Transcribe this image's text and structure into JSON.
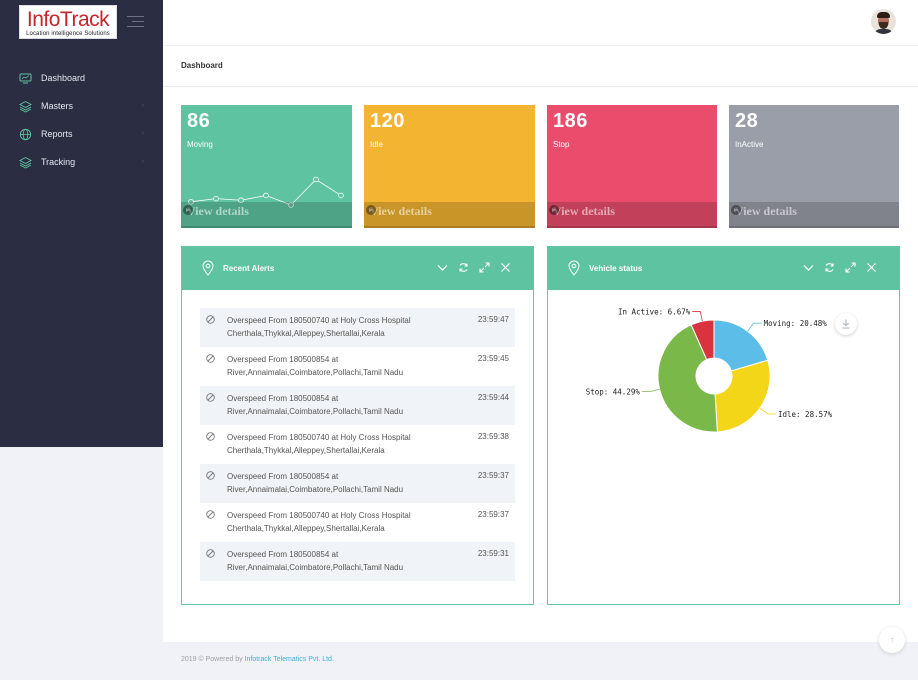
{
  "brand": {
    "name": "InfoTrack",
    "tagline": "Location intelligence Solutions"
  },
  "sidebar": {
    "items": [
      {
        "label": "Dashboard",
        "icon": "monitor-icon"
      },
      {
        "label": "Masters",
        "icon": "layers-icon"
      },
      {
        "label": "Reports",
        "icon": "globe-icon"
      },
      {
        "label": "Tracking",
        "icon": "layers-icon"
      }
    ],
    "caret": "›"
  },
  "breadcrumb": "Dashboard",
  "stats": [
    {
      "value": "86",
      "label": "Moving",
      "color": "#5ec3a0",
      "footer": "View details"
    },
    {
      "value": "120",
      "label": "Idle",
      "color": "#f3b431",
      "footer": "View details"
    },
    {
      "value": "186",
      "label": "Stop",
      "color": "#ea4d6b",
      "footer": "View details"
    },
    {
      "value": "28",
      "label": "InActive",
      "color": "#9a9ea8",
      "footer": "View details"
    }
  ],
  "sparkline_values": [
    3,
    4,
    3.5,
    5,
    2,
    10,
    5
  ],
  "alerts_panel": {
    "title": "Recent Alerts",
    "rows": [
      {
        "text": "Overspeed From 180500740 at Holy Cross Hospital Cherthala,Thykkal,Alleppey,Shertallai,Kerala",
        "time": "23:59:47"
      },
      {
        "text": "Overspeed From 180500854 at River,Annaimalai,Coimbatore,Pollachi,Tamil Nadu",
        "time": "23:59:45"
      },
      {
        "text": "Overspeed From 180500854 at River,Annaimalai,Coimbatore,Pollachi,Tamil Nadu",
        "time": "23:59:44"
      },
      {
        "text": "Overspeed From 180500740 at Holy Cross Hospital Cherthala,Thykkal,Alleppey,Shertallai,Kerala",
        "time": "23:59:38"
      },
      {
        "text": "Overspeed From 180500854 at River,Annaimalai,Coimbatore,Pollachi,Tamil Nadu",
        "time": "23:59:37"
      },
      {
        "text": "Overspeed From 180500740 at Holy Cross Hospital Cherthala,Thykkal,Alleppey,Shertallai,Kerala",
        "time": "23:59:37"
      },
      {
        "text": "Overspeed From 180500854 at River,Annaimalai,Coimbatore,Pollachi,Tamil Nadu",
        "time": "23:59:31"
      }
    ]
  },
  "vehicle_panel": {
    "title": "Vehicle status"
  },
  "chart_data": {
    "type": "pie",
    "series": [
      {
        "name": "Moving",
        "value": 20.48,
        "label": "Moving: 20.48%",
        "color": "#5bbde8"
      },
      {
        "name": "Idle",
        "value": 28.57,
        "label": "Idle: 28.57%",
        "color": "#f3d618"
      },
      {
        "name": "Stop",
        "value": 44.29,
        "label": "Stop: 44.29%",
        "color": "#7bb84a"
      },
      {
        "name": "In Active",
        "value": 6.67,
        "label": "In Active: 6.67%",
        "color": "#d9333f"
      }
    ]
  },
  "footer": {
    "prefix": "2019 © Powered by ",
    "link": "Infotrack Telematics Pvt. Ltd."
  }
}
